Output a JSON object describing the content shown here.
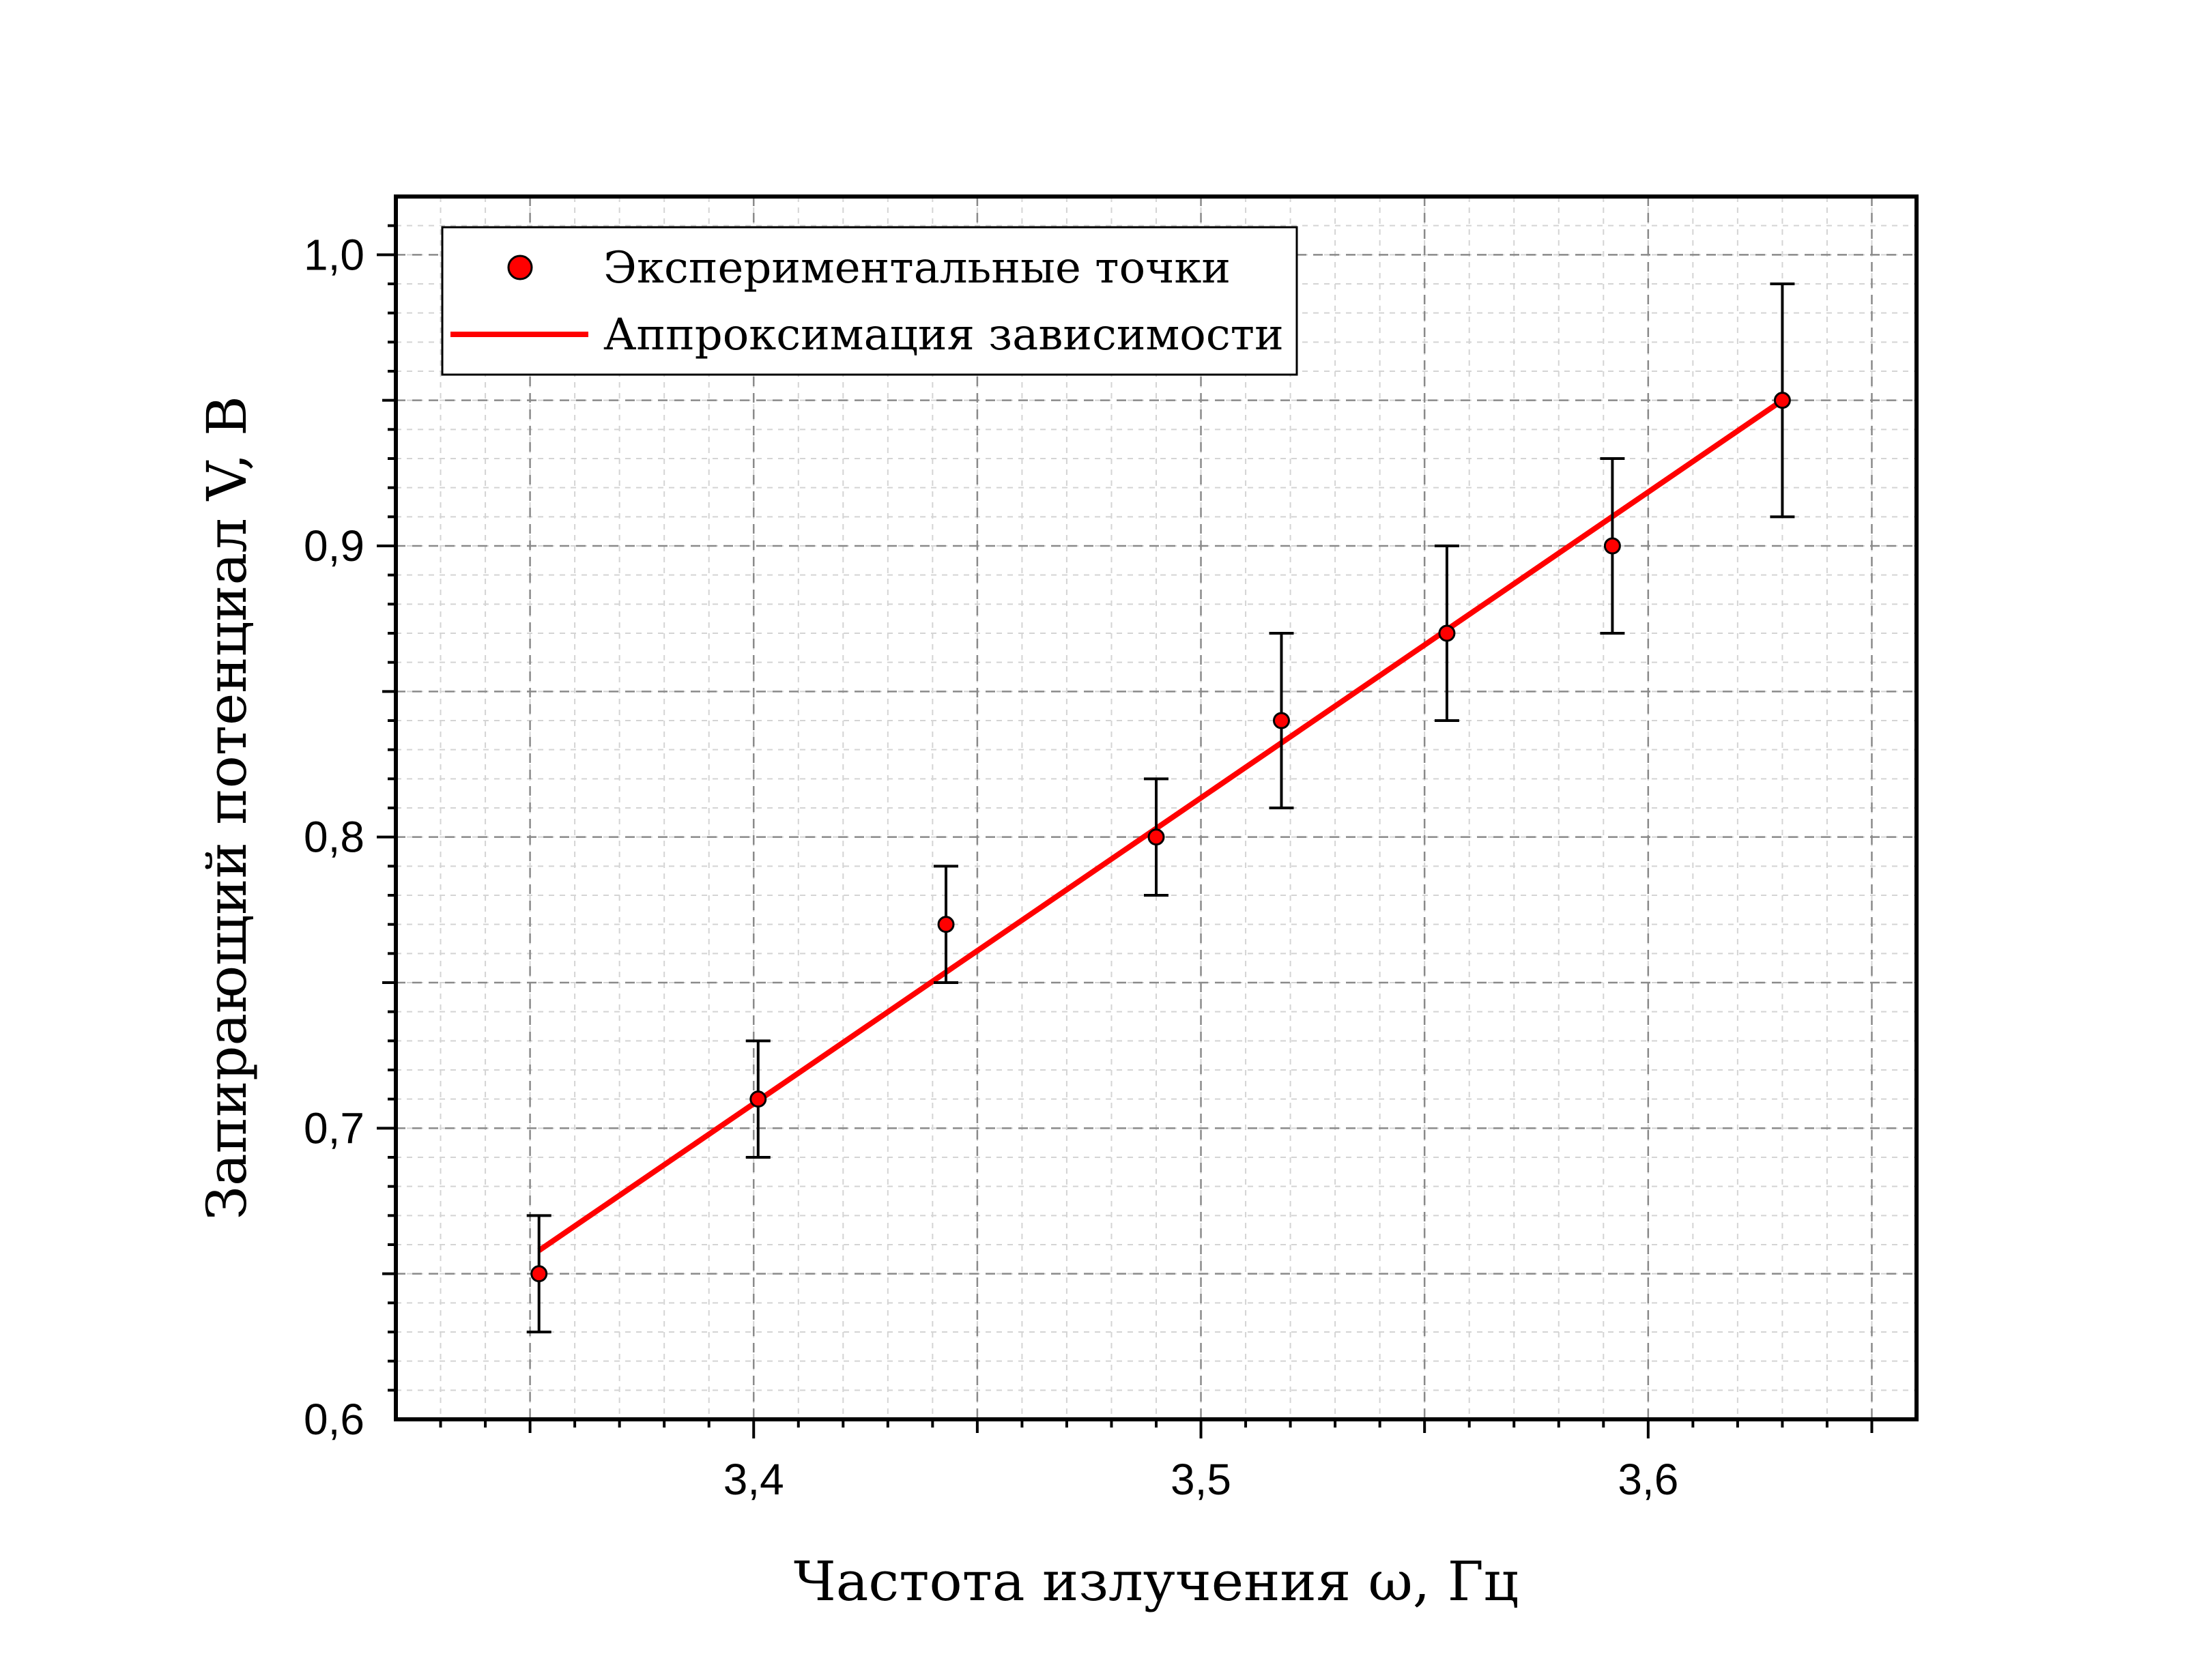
{
  "chart_data": {
    "type": "scatter",
    "title": "",
    "xlabel": "Частота излучения ω, Гц",
    "ylabel": "Запирающий потенциал V, В",
    "xlim": [
      3.32,
      3.66
    ],
    "ylim": [
      0.6,
      1.02
    ],
    "grid": true,
    "legend_position": "top-left",
    "x_ticks": [
      {
        "value": 3.4,
        "label": "3,4"
      },
      {
        "value": 3.5,
        "label": "3,5"
      },
      {
        "value": 3.6,
        "label": "3,6"
      }
    ],
    "y_ticks": [
      {
        "value": 0.6,
        "label": "0,6"
      },
      {
        "value": 0.7,
        "label": "0,7"
      },
      {
        "value": 0.8,
        "label": "0,8"
      },
      {
        "value": 0.9,
        "label": "0,9"
      },
      {
        "value": 1.0,
        "label": "1,0"
      }
    ],
    "series": [
      {
        "name": "Экспериментальные точки",
        "kind": "scatter",
        "color": "#ff0000",
        "points": [
          {
            "x": 3.352,
            "y": 0.65,
            "err": 0.02
          },
          {
            "x": 3.401,
            "y": 0.71,
            "err": 0.02
          },
          {
            "x": 3.443,
            "y": 0.77,
            "err": 0.02
          },
          {
            "x": 3.49,
            "y": 0.8,
            "err": 0.02
          },
          {
            "x": 3.518,
            "y": 0.84,
            "err": 0.03
          },
          {
            "x": 3.555,
            "y": 0.87,
            "err": 0.03
          },
          {
            "x": 3.592,
            "y": 0.9,
            "err": 0.03
          },
          {
            "x": 3.63,
            "y": 0.95,
            "err": 0.04
          }
        ]
      },
      {
        "name": "Аппроксимация зависимости",
        "kind": "line",
        "color": "#ff0000",
        "points": [
          {
            "x": 3.352,
            "y": 0.658
          },
          {
            "x": 3.63,
            "y": 0.95
          }
        ]
      }
    ]
  }
}
